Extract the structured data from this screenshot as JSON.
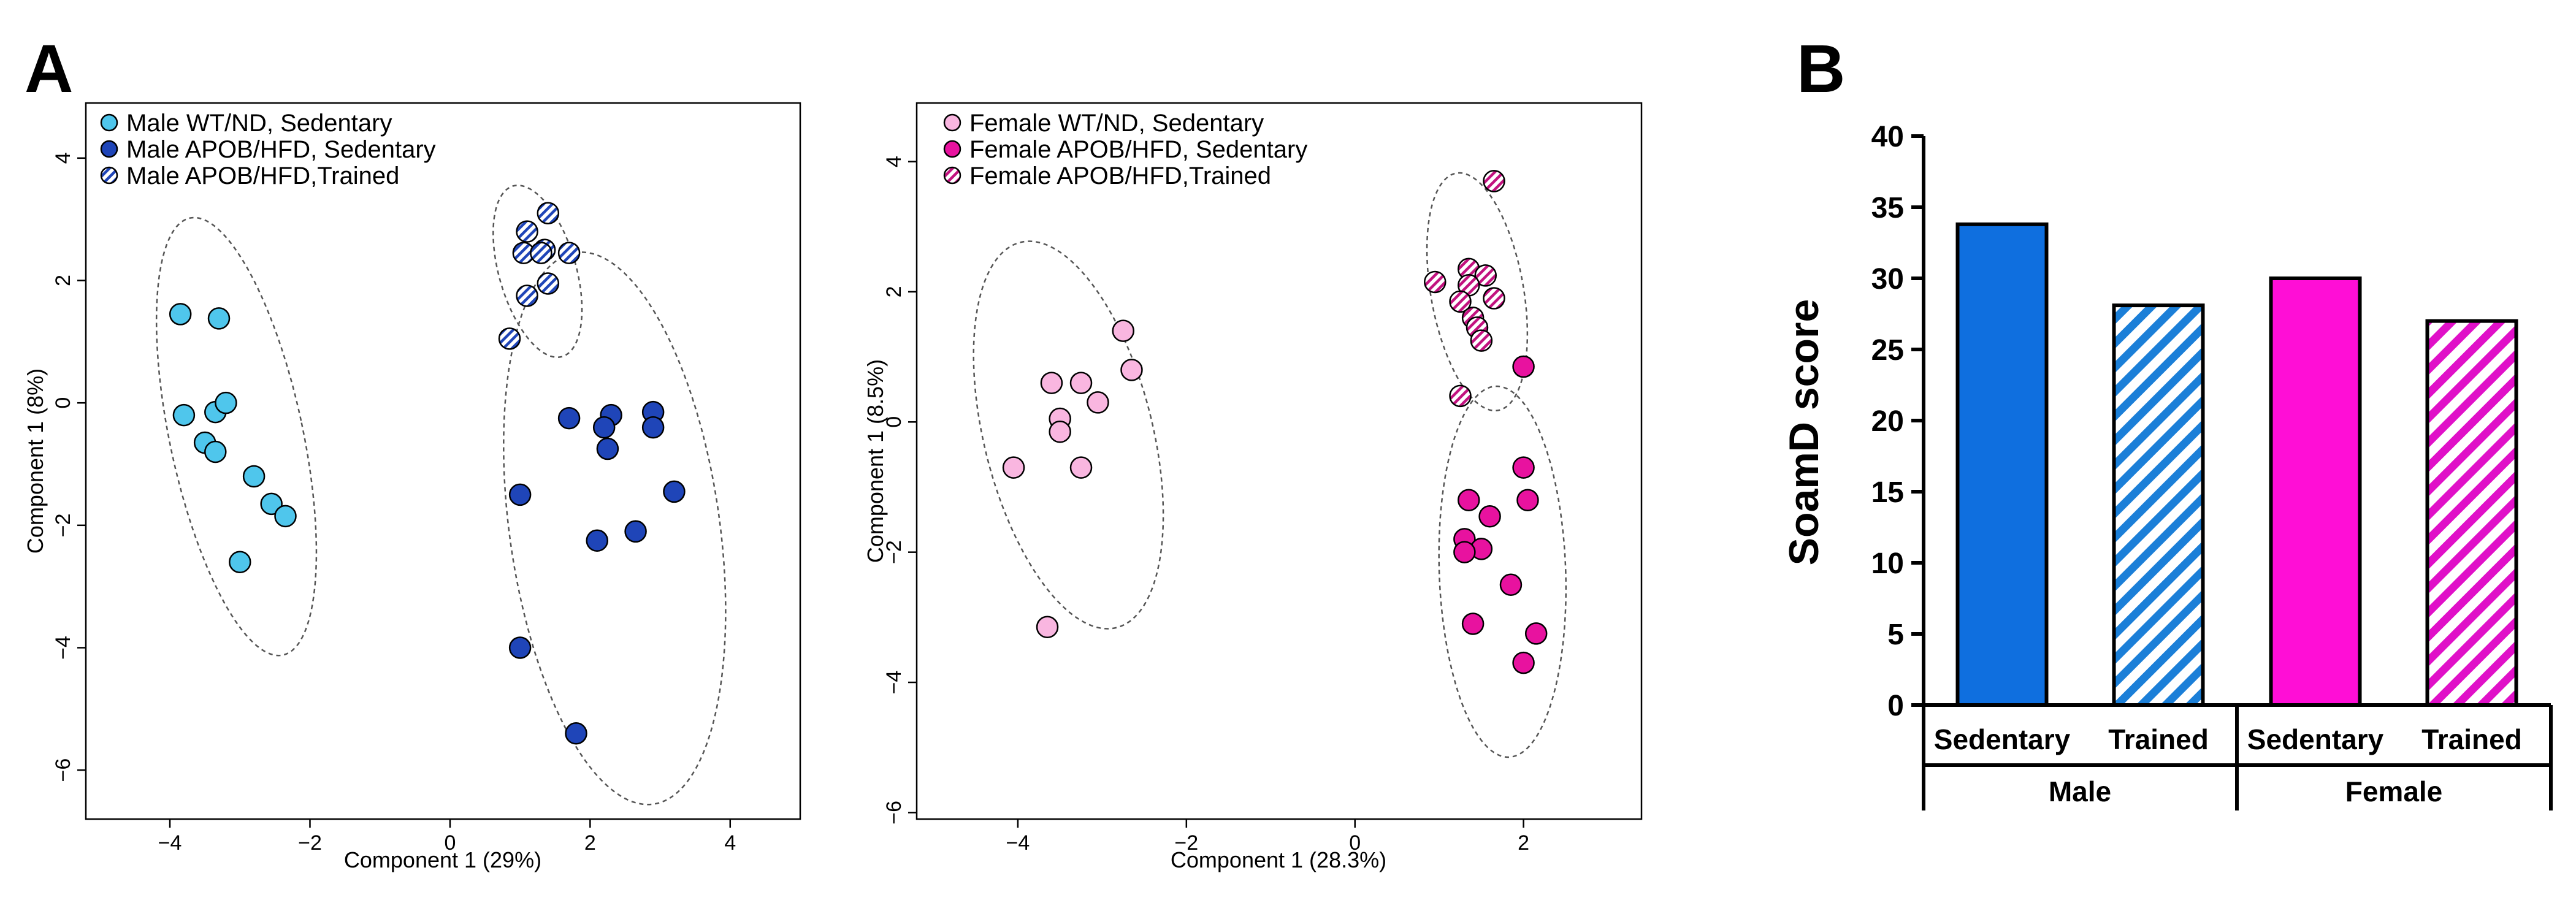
{
  "panels": {
    "a_letter": "A",
    "b_letter": "B"
  },
  "colors": {
    "male_wt": "#4fc6ec",
    "male_apob": "#1f45b8",
    "male_trained_stripe": "#1f45b8",
    "female_wt": "#f9b6e0",
    "female_apob": "#e8129f",
    "female_trained_stripe": "#c2127f",
    "bar_male": "#0f6fdf",
    "bar_male_hatch": "#1b7fd8",
    "bar_female": "#ff0ed6",
    "bar_female_hatch": "#e010c8"
  },
  "chart_data": [
    {
      "type": "scatter",
      "id": "male-pca",
      "xlabel": "Component 1 (29%)",
      "ylabel": "Component 1 (8%)",
      "xlim": [
        -5.2,
        5
      ],
      "ylim": [
        -6.8,
        4.9
      ],
      "xticks": [
        -4,
        -2,
        0,
        2,
        4
      ],
      "yticks": [
        -6,
        -4,
        -2,
        0,
        2,
        4
      ],
      "xticklabels": [
        "−4",
        "−2",
        "0",
        "2",
        "4"
      ],
      "yticklabels": [
        "−6",
        "−4",
        "−2",
        "0",
        "2",
        "4"
      ],
      "series": [
        {
          "name": "Male WT/ND, Sedentary",
          "style": "male_wt",
          "ellipse": {
            "cx": -3.05,
            "cy": -0.55,
            "rx": 0.95,
            "ry": 3.65,
            "angle": 78
          },
          "points": [
            [
              -3.85,
              1.45
            ],
            [
              -3.3,
              1.38
            ],
            [
              -3.8,
              -0.2
            ],
            [
              -3.35,
              -0.15
            ],
            [
              -3.2,
              0.0
            ],
            [
              -3.5,
              -0.65
            ],
            [
              -3.35,
              -0.8
            ],
            [
              -2.8,
              -1.2
            ],
            [
              -2.55,
              -1.65
            ],
            [
              -2.35,
              -1.85
            ],
            [
              -3.0,
              -2.6
            ]
          ]
        },
        {
          "name": "Male APOB/HFD, Sedentary",
          "style": "male_apob",
          "ellipse": {
            "cx": 2.35,
            "cy": -2.05,
            "rx": 1.5,
            "ry": 4.55,
            "angle": 82
          },
          "points": [
            [
              1.7,
              -0.25
            ],
            [
              2.3,
              -0.2
            ],
            [
              2.9,
              -0.15
            ],
            [
              2.2,
              -0.4
            ],
            [
              2.9,
              -0.4
            ],
            [
              2.25,
              -0.75
            ],
            [
              1.0,
              -1.5
            ],
            [
              3.2,
              -1.45
            ],
            [
              2.1,
              -2.25
            ],
            [
              2.65,
              -2.1
            ],
            [
              1.0,
              -4.0
            ],
            [
              1.8,
              -5.4
            ]
          ]
        },
        {
          "name": "Male APOB/HFD,Trained",
          "style": "male_trained",
          "ellipse": {
            "cx": 1.25,
            "cy": 2.15,
            "rx": 0.55,
            "ry": 1.45,
            "angle": 74
          },
          "points": [
            [
              1.4,
              3.1
            ],
            [
              1.1,
              2.8
            ],
            [
              1.35,
              2.5
            ],
            [
              1.05,
              2.45
            ],
            [
              1.3,
              2.45
            ],
            [
              1.7,
              2.45
            ],
            [
              1.4,
              1.95
            ],
            [
              1.1,
              1.75
            ],
            [
              0.85,
              1.05
            ]
          ]
        }
      ]
    },
    {
      "type": "scatter",
      "id": "female-pca",
      "xlabel": "Component 1 (28.3%)",
      "ylabel": "Component 1 (8.5%)",
      "xlim": [
        -5.2,
        3.4
      ],
      "ylim": [
        -6.1,
        4.9
      ],
      "xticks": [
        -4,
        -2,
        0,
        2
      ],
      "yticks": [
        -6,
        -4,
        -2,
        0,
        2,
        4
      ],
      "xticklabels": [
        "−4",
        "−2",
        "0",
        "2"
      ],
      "yticklabels": [
        "−6",
        "−4",
        "−2",
        "0",
        "2",
        "4"
      ],
      "series": [
        {
          "name": "Female WT/ND, Sedentary",
          "style": "female_wt",
          "ellipse": {
            "cx": -3.4,
            "cy": -0.2,
            "rx": 1.0,
            "ry": 3.05,
            "angle": 76
          },
          "points": [
            [
              -2.75,
              1.4
            ],
            [
              -2.65,
              0.8
            ],
            [
              -3.6,
              0.6
            ],
            [
              -3.25,
              0.6
            ],
            [
              -3.05,
              0.3
            ],
            [
              -3.5,
              0.05
            ],
            [
              -3.5,
              -0.15
            ],
            [
              -4.05,
              -0.7
            ],
            [
              -3.25,
              -0.7
            ],
            [
              -3.65,
              -3.15
            ]
          ]
        },
        {
          "name": "Female APOB/HFD, Sedentary",
          "style": "female_apob",
          "ellipse": {
            "cx": 1.75,
            "cy": -2.3,
            "rx": 0.75,
            "ry": 2.85,
            "angle": 88
          },
          "points": [
            [
              2.0,
              0.85
            ],
            [
              2.0,
              -0.7
            ],
            [
              2.05,
              -1.2
            ],
            [
              1.35,
              -1.2
            ],
            [
              1.6,
              -1.45
            ],
            [
              1.3,
              -1.8
            ],
            [
              1.5,
              -1.95
            ],
            [
              1.3,
              -2.0
            ],
            [
              1.85,
              -2.5
            ],
            [
              2.15,
              -3.25
            ],
            [
              1.4,
              -3.1
            ],
            [
              2.0,
              -3.7
            ]
          ]
        },
        {
          "name": "Female APOB/HFD,Trained",
          "style": "female_trained",
          "ellipse": {
            "cx": 1.45,
            "cy": 2.0,
            "rx": 0.55,
            "ry": 1.85,
            "angle": 80
          },
          "points": [
            [
              1.65,
              3.7
            ],
            [
              1.35,
              2.35
            ],
            [
              1.55,
              2.25
            ],
            [
              1.35,
              2.1
            ],
            [
              0.95,
              2.15
            ],
            [
              1.25,
              1.85
            ],
            [
              1.65,
              1.9
            ],
            [
              1.4,
              1.6
            ],
            [
              1.45,
              1.45
            ],
            [
              1.5,
              1.25
            ],
            [
              1.25,
              0.4
            ]
          ]
        }
      ]
    },
    {
      "type": "bar",
      "id": "soamd-bar",
      "ylabel": "SoamD score",
      "ylim": [
        0,
        40
      ],
      "yticks": [
        0,
        5,
        10,
        15,
        20,
        25,
        30,
        35,
        40
      ],
      "categories": [
        "Sedentary",
        "Trained",
        "Sedentary",
        "Trained"
      ],
      "groups": [
        "Male",
        "Female"
      ],
      "values": [
        33.8,
        28.1,
        30.0,
        27.0
      ],
      "styles": [
        "male_solid",
        "male_hatch",
        "female_solid",
        "female_hatch"
      ]
    }
  ]
}
